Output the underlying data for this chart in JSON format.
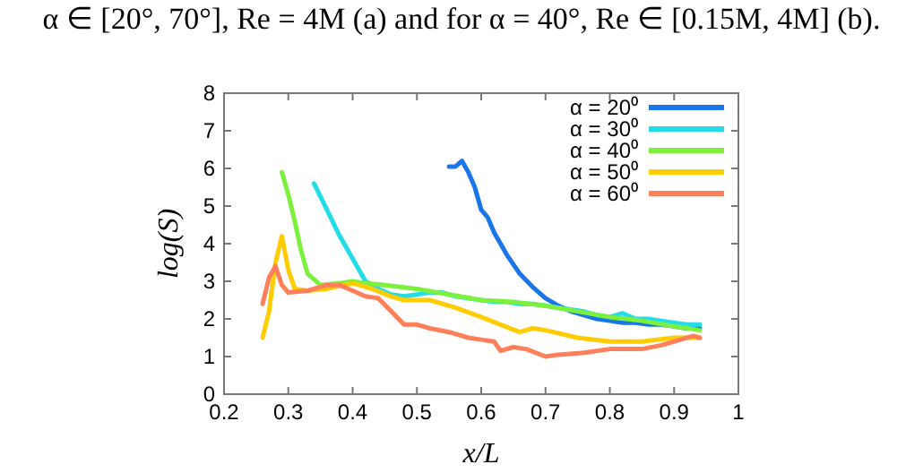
{
  "chart_data": {
    "type": "line",
    "annotations": [
      "α ∈ [20°, 70°], Re = 4M (a) and for α = 40°, Re ∈ [0.15M, 4M] (b)."
    ],
    "xlabel": "x/L",
    "ylabel": "log(S)",
    "xlim": [
      0.2,
      1
    ],
    "ylim": [
      0,
      8
    ],
    "xticks": [
      0.2,
      0.3,
      0.4,
      0.5,
      0.6,
      0.7,
      0.8,
      0.9,
      1
    ],
    "yticks": [
      0,
      1,
      2,
      3,
      4,
      5,
      6,
      7,
      8
    ],
    "legend": "top right",
    "grid": false,
    "marker": "none",
    "line_style": "solid",
    "series": [
      {
        "name": "α = 20⁰",
        "color": "#1a75e8",
        "x": [
          0.55,
          0.56,
          0.57,
          0.58,
          0.59,
          0.6,
          0.61,
          0.62,
          0.64,
          0.66,
          0.68,
          0.7,
          0.72,
          0.74,
          0.76,
          0.78,
          0.8,
          0.82,
          0.84,
          0.86,
          0.88,
          0.9,
          0.92,
          0.94
        ],
        "values": [
          6.05,
          6.05,
          6.2,
          5.9,
          5.5,
          4.9,
          4.7,
          4.3,
          3.7,
          3.2,
          2.85,
          2.55,
          2.35,
          2.2,
          2.1,
          2.0,
          1.95,
          1.9,
          1.9,
          1.85,
          1.85,
          1.8,
          1.75,
          1.75
        ]
      },
      {
        "name": "α = 30⁰",
        "color": "#22dde8",
        "x": [
          0.34,
          0.36,
          0.38,
          0.4,
          0.42,
          0.44,
          0.46,
          0.48,
          0.5,
          0.52,
          0.54,
          0.56,
          0.58,
          0.6,
          0.62,
          0.64,
          0.66,
          0.68,
          0.7,
          0.72,
          0.74,
          0.76,
          0.78,
          0.8,
          0.82,
          0.84,
          0.86,
          0.88,
          0.9,
          0.92,
          0.94
        ],
        "values": [
          5.6,
          4.9,
          4.2,
          3.6,
          3.0,
          2.8,
          2.65,
          2.6,
          2.65,
          2.7,
          2.7,
          2.6,
          2.55,
          2.5,
          2.45,
          2.45,
          2.4,
          2.4,
          2.35,
          2.3,
          2.25,
          2.2,
          2.1,
          2.05,
          2.15,
          2.0,
          2.0,
          1.95,
          1.9,
          1.85,
          1.85
        ]
      },
      {
        "name": "α = 40⁰",
        "color": "#7cf03c",
        "x": [
          0.29,
          0.3,
          0.31,
          0.32,
          0.33,
          0.35,
          0.38,
          0.4,
          0.42,
          0.45,
          0.5,
          0.55,
          0.6,
          0.65,
          0.7,
          0.75,
          0.8,
          0.85,
          0.9,
          0.94
        ],
        "values": [
          5.9,
          5.3,
          4.6,
          3.8,
          3.2,
          2.9,
          2.95,
          3.0,
          2.95,
          2.9,
          2.8,
          2.65,
          2.5,
          2.45,
          2.35,
          2.2,
          2.05,
          1.95,
          1.8,
          1.7
        ]
      },
      {
        "name": "α = 50⁰",
        "color": "#ffcc00",
        "x": [
          0.26,
          0.27,
          0.28,
          0.29,
          0.3,
          0.31,
          0.33,
          0.36,
          0.4,
          0.43,
          0.46,
          0.48,
          0.52,
          0.56,
          0.6,
          0.63,
          0.66,
          0.68,
          0.7,
          0.75,
          0.8,
          0.85,
          0.9,
          0.94
        ],
        "values": [
          1.5,
          2.2,
          3.5,
          4.2,
          3.3,
          2.8,
          2.75,
          2.8,
          2.95,
          2.8,
          2.6,
          2.5,
          2.5,
          2.3,
          2.05,
          1.85,
          1.65,
          1.75,
          1.7,
          1.5,
          1.4,
          1.4,
          1.5,
          1.5
        ]
      },
      {
        "name": "α = 60⁰",
        "color": "#ff7f5a",
        "x": [
          0.26,
          0.27,
          0.28,
          0.29,
          0.3,
          0.33,
          0.36,
          0.38,
          0.4,
          0.42,
          0.44,
          0.46,
          0.48,
          0.5,
          0.52,
          0.55,
          0.58,
          0.6,
          0.62,
          0.63,
          0.65,
          0.67,
          0.7,
          0.72,
          0.76,
          0.8,
          0.85,
          0.88,
          0.91,
          0.93,
          0.94
        ],
        "values": [
          2.4,
          3.1,
          3.4,
          2.9,
          2.7,
          2.75,
          2.9,
          2.9,
          2.75,
          2.6,
          2.55,
          2.2,
          1.85,
          1.85,
          1.75,
          1.65,
          1.5,
          1.45,
          1.4,
          1.15,
          1.25,
          1.2,
          1.0,
          1.05,
          1.1,
          1.2,
          1.2,
          1.3,
          1.45,
          1.55,
          1.5
        ]
      }
    ]
  }
}
